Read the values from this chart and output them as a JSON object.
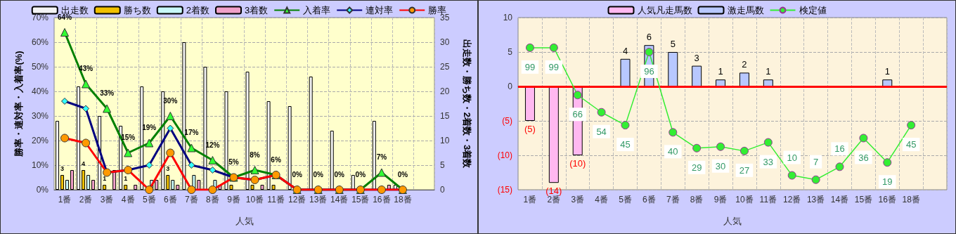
{
  "chart_data": [
    {
      "type": "bar",
      "xlabel": "人気",
      "ylabel": "勝率・連対率・入着率(%)",
      "y2label": "出走数・勝ち数・2着数・3着数",
      "categories": [
        "1番",
        "2番",
        "3番",
        "4番",
        "5番",
        "6番",
        "7番",
        "8番",
        "9番",
        "10番",
        "11番",
        "12番",
        "13番",
        "14番",
        "15番",
        "16番",
        "18番",
        null
      ],
      "ylim": [
        0,
        70
      ],
      "yticks": [
        {
          "value": 0,
          "label": "0%"
        },
        {
          "value": 10,
          "label": "10%"
        },
        {
          "value": 20,
          "label": "20%"
        },
        {
          "value": 30,
          "label": "30%"
        },
        {
          "value": 40,
          "label": "40%"
        },
        {
          "value": 50,
          "label": "50%"
        },
        {
          "value": 60,
          "label": "60%"
        },
        {
          "value": 70,
          "label": "70%"
        }
      ],
      "y2lim": [
        0,
        35
      ],
      "y2ticks": [
        0,
        5,
        10,
        15,
        20,
        25,
        30,
        35
      ],
      "grid": true,
      "legend": "top",
      "series": [
        {
          "name": "出走数",
          "axis": "y2",
          "color": "#f4f4f4",
          "values": [
            14,
            21,
            15,
            13,
            21,
            20,
            30,
            25,
            20,
            24,
            18,
            17,
            23,
            12,
            3,
            14,
            1,
            null
          ]
        },
        {
          "name": "勝ち数",
          "axis": "y2",
          "color": "#f0c000",
          "values": [
            3,
            4,
            1,
            1,
            0,
            3,
            0,
            0,
            1,
            1,
            1,
            0,
            0,
            0,
            0,
            0,
            0,
            null
          ],
          "value_labels": [
            "3",
            "4",
            "1",
            "1",
            null,
            "3",
            null,
            null,
            null,
            null,
            null,
            null,
            null,
            null,
            null,
            null,
            null,
            null
          ]
        },
        {
          "name": "2着数",
          "axis": "y2",
          "color": "#c8f8f8",
          "values": [
            2,
            3,
            0,
            0,
            2,
            2,
            3,
            2,
            0,
            0,
            0,
            0,
            0,
            0,
            0,
            0,
            0,
            null
          ]
        },
        {
          "name": "3着数",
          "axis": "y2",
          "color": "#f0a0c8",
          "values": [
            4,
            2,
            4,
            1,
            2,
            1,
            2,
            1,
            0,
            1,
            0,
            0,
            0,
            0,
            0,
            1,
            0,
            null
          ]
        },
        {
          "name": "入着率",
          "type": "line",
          "color": "#008000",
          "marker": "triangle",
          "values": [
            64,
            43,
            33,
            15,
            19,
            30,
            17,
            12,
            5,
            8,
            6,
            0,
            0,
            0,
            0,
            7,
            0,
            null
          ],
          "value_labels": [
            "64%",
            "43%",
            "33%",
            "15%",
            "19%",
            "30%",
            "17%",
            "12%",
            "5%",
            "8%",
            "6%",
            "0%",
            "0%",
            "0%",
            "0%",
            "7%",
            "0%",
            null
          ]
        },
        {
          "name": "連対率",
          "type": "line",
          "color": "#000080",
          "marker": "diamond",
          "values": [
            36,
            33,
            7,
            8,
            10,
            25,
            10,
            8,
            5,
            4,
            6,
            0,
            0,
            0,
            0,
            0,
            0,
            null
          ]
        },
        {
          "name": "勝率",
          "type": "line",
          "color": "#ff0000",
          "marker": "circle",
          "values": [
            21,
            19,
            7,
            8,
            0,
            15,
            0,
            0,
            5,
            4,
            6,
            0,
            0,
            0,
            0,
            0,
            0,
            null
          ]
        }
      ]
    },
    {
      "type": "bar",
      "xlabel": "人気",
      "stacked": true,
      "categories": [
        "1番",
        "2番",
        "3番",
        "4番",
        "5番",
        "6番",
        "7番",
        "8番",
        "9番",
        "10番",
        "11番",
        "12番",
        "13番",
        "14番",
        "15番",
        "16番",
        "18番",
        null
      ],
      "ylim": [
        -15,
        10
      ],
      "yticks": [
        {
          "value": -15,
          "label": "(15)"
        },
        {
          "value": -10,
          "label": "(10)"
        },
        {
          "value": -5,
          "label": "(5)"
        },
        0,
        5,
        10
      ],
      "y2lim": [
        0,
        120
      ],
      "grid": true,
      "legend": "top",
      "ref_lines": [
        {
          "axis": "y",
          "value": 0,
          "color": "#ff0000"
        }
      ],
      "series": [
        {
          "name": "人気凡走馬数",
          "color": "#ffb8f0",
          "values": [
            -5,
            -14,
            -10,
            null,
            null,
            null,
            null,
            null,
            null,
            null,
            null,
            null,
            null,
            null,
            null,
            null,
            null,
            null
          ],
          "value_labels": [
            "(5)",
            "(14)",
            "(10)",
            null,
            null,
            null,
            null,
            null,
            null,
            null,
            null,
            null,
            null,
            null,
            null,
            null,
            null,
            null
          ]
        },
        {
          "name": "激走馬数",
          "color": "#b8c8ff",
          "values": [
            null,
            null,
            null,
            null,
            4,
            6,
            5,
            3,
            1,
            2,
            1,
            null,
            null,
            null,
            null,
            1,
            null,
            null
          ],
          "value_labels": [
            null,
            null,
            null,
            null,
            "4",
            "6",
            "5",
            "3",
            "1",
            "2",
            "1",
            null,
            null,
            null,
            null,
            "1",
            null,
            null
          ]
        },
        {
          "name": "検定値",
          "type": "line",
          "axis": "y2",
          "color": "#33ee33",
          "marker": "circle",
          "values": [
            99,
            99,
            66,
            54,
            45,
            96,
            40,
            29,
            30,
            27,
            33,
            10,
            7,
            16,
            36,
            19,
            45,
            null
          ],
          "value_labels": [
            "99",
            "99",
            "66",
            "54",
            "45",
            "96",
            "40",
            "29",
            "30",
            "27",
            "33",
            "10",
            "7",
            "16",
            "36",
            "19",
            "45",
            null
          ]
        }
      ]
    }
  ]
}
